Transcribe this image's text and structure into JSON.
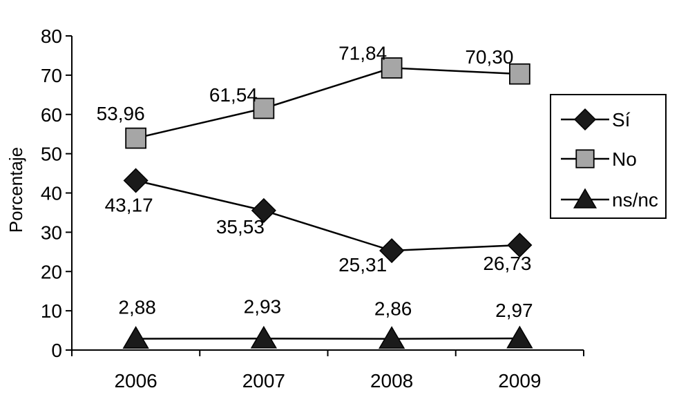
{
  "chart_data": {
    "type": "line",
    "categories": [
      "2006",
      "2007",
      "2008",
      "2009"
    ],
    "ylabel": "Porcentaje",
    "xlabel": "",
    "ylim": [
      0,
      80
    ],
    "yticks": [
      0,
      10,
      20,
      30,
      40,
      50,
      60,
      70,
      80
    ],
    "grid": false,
    "legend_position": "right",
    "series": [
      {
        "name": "Sí",
        "marker": "diamond",
        "color": "#1a1a1a",
        "values": [
          43.17,
          35.53,
          25.31,
          26.73
        ],
        "labels": [
          "43,17",
          "35,53",
          "25,31",
          "26,73"
        ]
      },
      {
        "name": "No",
        "marker": "square",
        "color": "#a6a6a6",
        "values": [
          53.96,
          61.54,
          71.84,
          70.3
        ],
        "labels": [
          "53,96",
          "61,54",
          "71,84",
          "70,30"
        ]
      },
      {
        "name": "ns/nc",
        "marker": "triangle",
        "color": "#1a1a1a",
        "values": [
          2.88,
          2.93,
          2.86,
          2.97
        ],
        "labels": [
          "2,88",
          "2,93",
          "2,86",
          "2,97"
        ]
      }
    ]
  }
}
